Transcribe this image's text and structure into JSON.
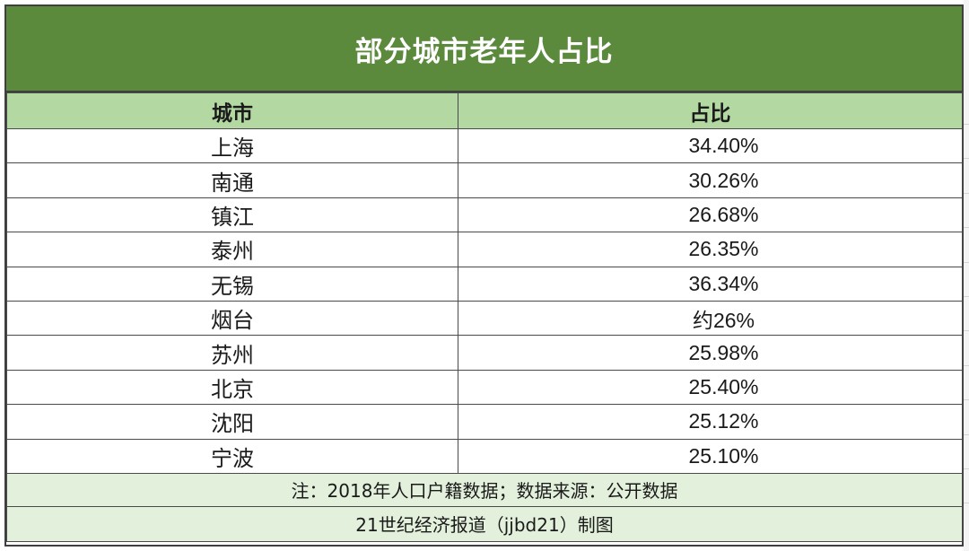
{
  "title": "部分城市老年人占比",
  "columns": [
    "城市",
    "占比"
  ],
  "rows": [
    {
      "city": "上海",
      "share": "34.40%"
    },
    {
      "city": "南通",
      "share": "30.26%"
    },
    {
      "city": "镇江",
      "share": "26.68%"
    },
    {
      "city": "泰州",
      "share": "26.35%"
    },
    {
      "city": "无锡",
      "share": "36.34%"
    },
    {
      "city": "烟台",
      "share": "约26%"
    },
    {
      "city": "苏州",
      "share": "25.98%"
    },
    {
      "city": "北京",
      "share": "25.40%"
    },
    {
      "city": "沈阳",
      "share": "25.12%"
    },
    {
      "city": "宁波",
      "share": "25.10%"
    }
  ],
  "footer": {
    "note": "注：2018年人口户籍数据；数据来源：公开数据",
    "credit": "21世纪经济报道（jjbd21）制图"
  },
  "colors": {
    "title_bg": "#5b8a3d",
    "header_bg": "#b3d8a2",
    "footer_bg": "#e3f0dc"
  }
}
